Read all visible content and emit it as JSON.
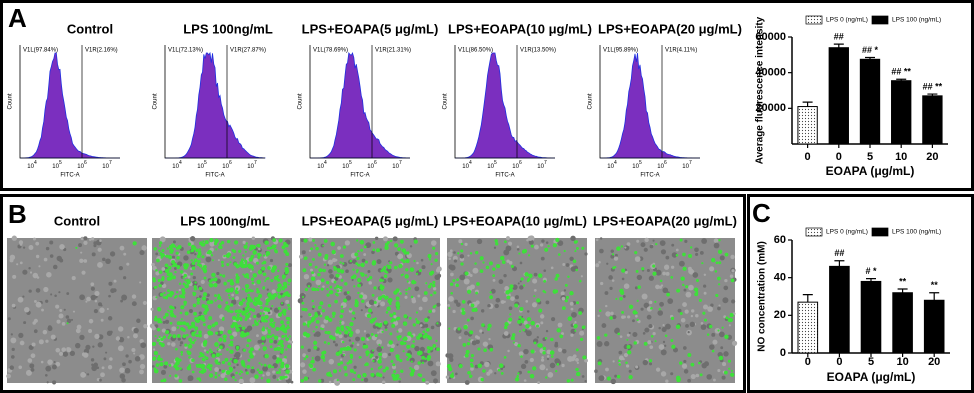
{
  "panel_labels": [
    "A",
    "B",
    "C"
  ],
  "flow": {
    "titles": [
      "Control",
      "LPS 100ng/mL",
      "LPS+EOAPA(5 μg/mL)",
      "LPS+EOAPA(10 μg/mL)",
      "LPS+EOAPA(20 μg/mL)"
    ],
    "gates": [
      [
        "V1L(97.84%)",
        "V1R(2.16%)"
      ],
      [
        "V1L(72.13%)",
        "V1R(27.87%)"
      ],
      [
        "V1L(78.69%)",
        "V1R(21.31%)"
      ],
      [
        "V1L(86.50%)",
        "V1R(13.50%)"
      ],
      [
        "V1L(95.89%)",
        "V1R(4.11%)"
      ]
    ],
    "x_label": "FITC-A",
    "y_label": "Count",
    "tick_base": "10",
    "tick_exponents": [
      4,
      5,
      6,
      7
    ]
  },
  "images": {
    "titles": [
      "Control",
      "LPS 100ng/mL",
      "LPS+EOAPA(5 μg/mL)",
      "LPS+EOAPA(10 μg/mL)",
      "LPS+EOAPA(20 μg/mL)"
    ]
  },
  "chart_data": [
    {
      "type": "bar",
      "y_label": "Average fluorescence intensity",
      "x_label": "EOAPA (μg/mL)",
      "categories": [
        "0",
        "0",
        "5",
        "10",
        "20"
      ],
      "series": [
        {
          "name": "LPS 0 (ng/mL)",
          "color": "#ffffff",
          "pattern": "dots",
          "values": [
            21000,
            null,
            null,
            null,
            null
          ],
          "errors": [
            2500,
            null,
            null,
            null,
            null
          ]
        },
        {
          "name": "LPS 100 (ng/mL)",
          "color": "#000000",
          "values": [
            null,
            54000,
            47500,
            35500,
            27000
          ],
          "errors": [
            null,
            2000,
            1000,
            800,
            1000
          ]
        }
      ],
      "annotations": [
        null,
        "##",
        "## *",
        "## **",
        "## **"
      ],
      "ylim": [
        0,
        60000
      ],
      "yticks": [
        20000,
        40000,
        60000
      ]
    },
    {
      "type": "bar",
      "y_label": "NO concentration (mM)",
      "x_label": "EOAPA (μg/mL)",
      "categories": [
        "0",
        "0",
        "5",
        "10",
        "20"
      ],
      "series": [
        {
          "name": "LPS 0 (ng/mL)",
          "color": "#ffffff",
          "pattern": "dots",
          "values": [
            27,
            null,
            null,
            null,
            null
          ],
          "errors": [
            4,
            null,
            null,
            null,
            null
          ]
        },
        {
          "name": "LPS 100 (ng/mL)",
          "color": "#000000",
          "values": [
            null,
            46,
            38,
            32,
            28
          ],
          "errors": [
            null,
            3,
            1.5,
            2,
            4
          ]
        }
      ],
      "annotations": [
        null,
        "##",
        "# *",
        "**",
        "**"
      ],
      "ylim": [
        0,
        60
      ],
      "yticks": [
        0,
        20,
        40,
        60
      ]
    }
  ]
}
